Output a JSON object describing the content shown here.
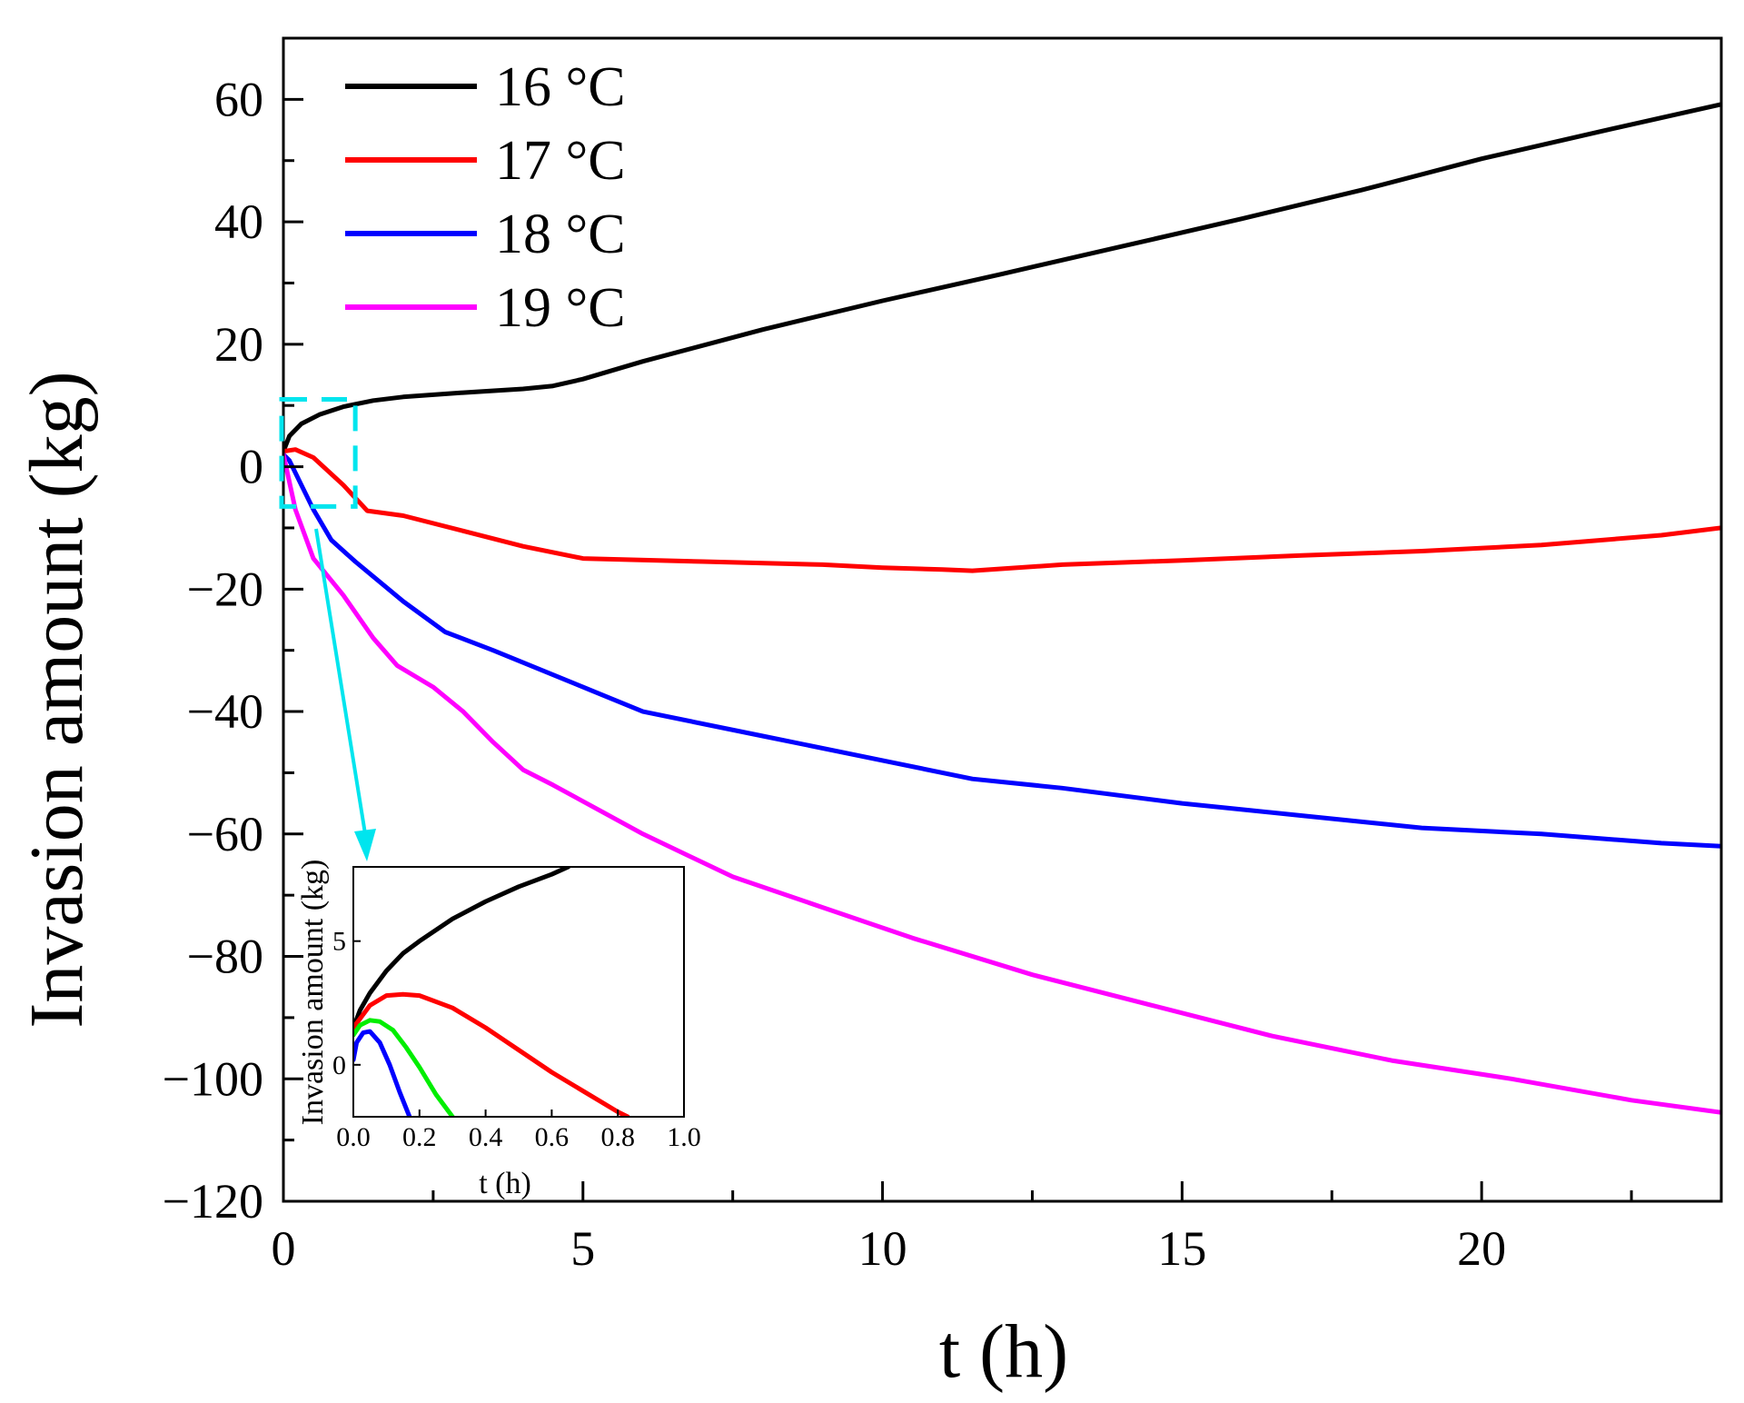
{
  "chart_data": {
    "type": "line",
    "xlabel": "t (h)",
    "ylabel": "Invasion amount (kg)",
    "xlim": [
      0,
      24
    ],
    "ylim": [
      -120,
      70
    ],
    "xticks": [
      "0",
      "5",
      "10",
      "15",
      "20"
    ],
    "xtick_values": [
      0,
      5,
      10,
      15,
      20
    ],
    "yticks": [
      "60",
      "40",
      "20",
      "0",
      "−20",
      "−40",
      "−60",
      "−80",
      "−100",
      "−120"
    ],
    "ytick_values": [
      60,
      40,
      20,
      0,
      -20,
      -40,
      -60,
      -80,
      -100,
      -120
    ],
    "legend_position": "top-left",
    "series": [
      {
        "name": "16 °C",
        "color": "#000000",
        "x": [
          0,
          0.1,
          0.3,
          0.6,
          1,
          1.5,
          2,
          3,
          4,
          4.5,
          5,
          6,
          8,
          10,
          12,
          14,
          16,
          18,
          20,
          22,
          24
        ],
        "y": [
          2.5,
          5,
          7,
          8.5,
          9.8,
          10.8,
          11.4,
          12.1,
          12.7,
          13.2,
          14.3,
          17.2,
          22.4,
          27.1,
          31.5,
          36.0,
          40.5,
          45.2,
          50.3,
          54.8,
          59.2
        ]
      },
      {
        "name": "17 °C",
        "color": "#ff0000",
        "x": [
          0,
          0.2,
          0.5,
          1,
          1.4,
          2,
          3,
          4,
          5,
          7,
          9,
          10,
          11,
          11.5,
          13,
          15,
          17,
          19,
          21,
          23,
          24
        ],
        "y": [
          2.5,
          2.8,
          1.5,
          -3,
          -7.2,
          -8,
          -10.5,
          -13,
          -15,
          -15.5,
          -16,
          -16.5,
          -16.8,
          -17,
          -16,
          -15.3,
          -14.5,
          -13.8,
          -12.8,
          -11.2,
          -10
        ]
      },
      {
        "name": "18 °C",
        "color": "#0000ff",
        "x": [
          0,
          0.1,
          0.3,
          0.5,
          0.8,
          1.2,
          2,
          2.7,
          3.5,
          5,
          6,
          8,
          10,
          11.5,
          13,
          15,
          17,
          19,
          21,
          23,
          24
        ],
        "y": [
          2,
          1,
          -3,
          -7,
          -12,
          -15.5,
          -22,
          -27,
          -30,
          -36,
          -40,
          -44,
          -48,
          -51,
          -52.5,
          -55,
          -57,
          -59,
          -60,
          -61.5,
          -62
        ]
      },
      {
        "name": "19 °C",
        "color": "#ff00ff",
        "x": [
          0,
          0.2,
          0.5,
          1,
          1.5,
          1.9,
          2.5,
          3,
          3.5,
          4,
          4.5,
          6,
          7.5,
          9,
          10.5,
          12.5,
          14.5,
          16.5,
          18.5,
          20.5,
          22.5,
          24
        ],
        "y": [
          2,
          -7,
          -15,
          -21,
          -28,
          -32.5,
          -36,
          -40,
          -45,
          -49.5,
          -52,
          -60,
          -67,
          -72,
          -77,
          -83,
          -88,
          -93,
          -97,
          -100,
          -103.5,
          -105.5
        ]
      }
    ],
    "inset": {
      "xlabel": "t (h)",
      "ylabel": "Invasion amount (kg)",
      "xlim": [
        0,
        1.0
      ],
      "ylim": [
        -2.1,
        8
      ],
      "xticks": [
        "0.0",
        "0.2",
        "0.4",
        "0.6",
        "0.8",
        "1.0"
      ],
      "xtick_values": [
        0,
        0.2,
        0.4,
        0.6,
        0.8,
        1.0
      ],
      "yticks": [
        "5",
        "0"
      ],
      "ytick_values": [
        5,
        0
      ],
      "series": [
        {
          "color": "#000000",
          "x": [
            0,
            0.02,
            0.05,
            0.1,
            0.15,
            0.2,
            0.3,
            0.4,
            0.5,
            0.6,
            0.65
          ],
          "y": [
            1.5,
            2.2,
            2.9,
            3.8,
            4.5,
            5.0,
            5.9,
            6.6,
            7.2,
            7.7,
            8.0
          ]
        },
        {
          "color": "#ff0000",
          "x": [
            0,
            0.05,
            0.1,
            0.15,
            0.2,
            0.3,
            0.4,
            0.5,
            0.6,
            0.7,
            0.8,
            0.83
          ],
          "y": [
            1.5,
            2.4,
            2.8,
            2.85,
            2.8,
            2.3,
            1.5,
            0.6,
            -0.3,
            -1.1,
            -1.9,
            -2.1
          ]
        },
        {
          "color": "#00ee00",
          "x": [
            0,
            0.02,
            0.05,
            0.08,
            0.12,
            0.16,
            0.2,
            0.25,
            0.3
          ],
          "y": [
            1.2,
            1.6,
            1.8,
            1.75,
            1.4,
            0.7,
            -0.1,
            -1.2,
            -2.1
          ]
        },
        {
          "color": "#0000ff",
          "x": [
            0,
            0.01,
            0.03,
            0.05,
            0.08,
            0.11,
            0.14,
            0.17
          ],
          "y": [
            0.2,
            0.9,
            1.3,
            1.35,
            0.9,
            0.0,
            -1.1,
            -2.1
          ]
        }
      ]
    },
    "zoom_box": {
      "x_range": [
        0,
        1.2
      ],
      "y_range": [
        -6.5,
        11
      ],
      "color": "#00e5ee"
    }
  }
}
